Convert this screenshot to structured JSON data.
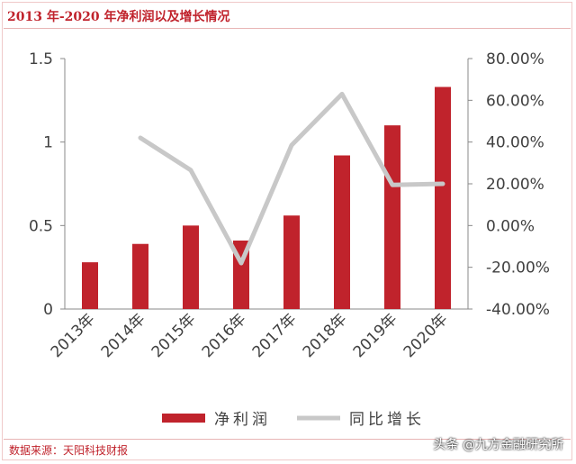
{
  "title": "2013 年-2020 年净利润以及增长情况",
  "source": "数据来源：天阳科技财报",
  "watermark": "头条 @九方金融研究所",
  "colors": {
    "bar": "#c0232c",
    "line": "#c8c8c8",
    "title": "#c0232c"
  },
  "chart_data": {
    "type": "bar",
    "categories": [
      "2013年",
      "2014年",
      "2015年",
      "2016年",
      "2017年",
      "2018年",
      "2019年",
      "2020年"
    ],
    "series": [
      {
        "name": "净利润",
        "type": "bar",
        "axis": "left",
        "values": [
          0.28,
          0.39,
          0.5,
          0.41,
          0.56,
          0.92,
          1.1,
          1.33
        ]
      },
      {
        "name": "同比增长",
        "type": "line",
        "axis": "right",
        "values": [
          null,
          42.0,
          26.5,
          -18.0,
          38.5,
          63.0,
          19.5,
          20.0
        ]
      }
    ],
    "left_axis": {
      "ylim": [
        0,
        1.5
      ],
      "ticks": [
        "0",
        "0.5",
        "1",
        "1.5"
      ]
    },
    "right_axis": {
      "ylim": [
        -40,
        80
      ],
      "ticks": [
        "-40.00%",
        "-20.00%",
        "0.00%",
        "20.00%",
        "40.00%",
        "60.00%",
        "80.00%"
      ]
    },
    "legend": {
      "position": "bottom",
      "items": [
        "净利润",
        "同比增长"
      ]
    },
    "grid": false
  }
}
